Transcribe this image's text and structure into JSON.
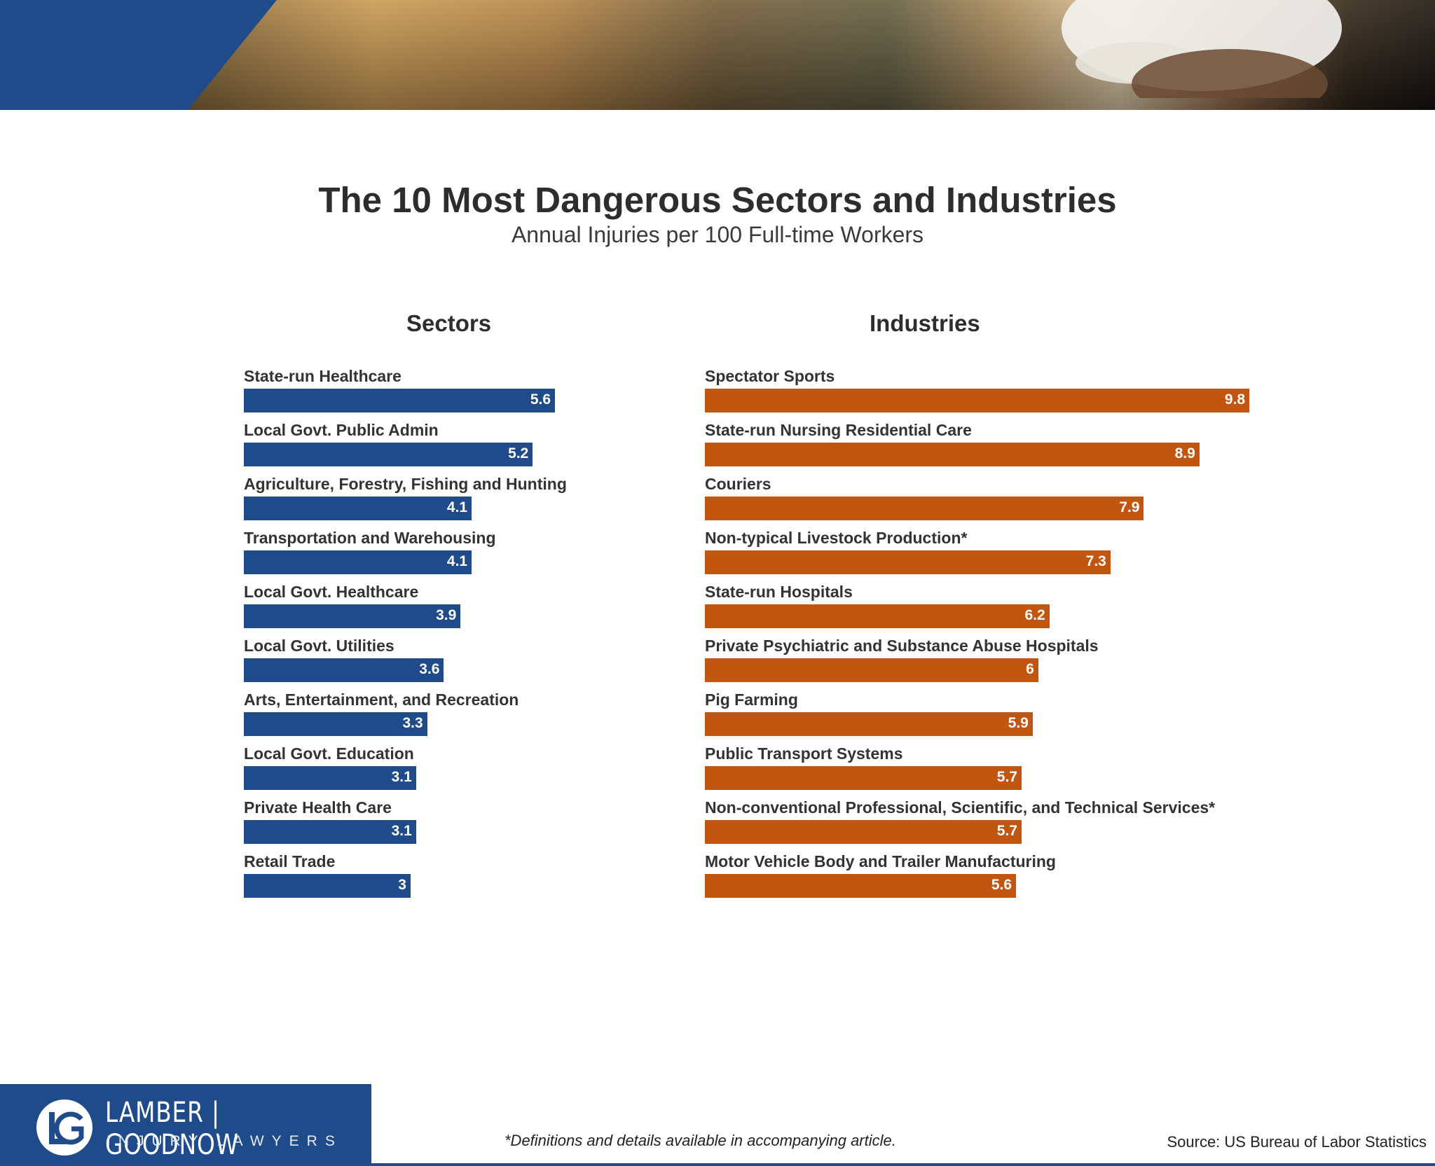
{
  "title": "The 10 Most Dangerous Sectors and Industries",
  "subtitle": "Annual Injuries per 100 Full-time Workers",
  "colors": {
    "sectors": "#1f4b8a",
    "industries": "#c2550f",
    "brand": "#1f4b8a"
  },
  "chart_data": [
    {
      "type": "bar",
      "orientation": "horizontal",
      "title": "Sectors",
      "xlim": [
        0,
        9.8
      ],
      "categories": [
        "State-run Healthcare",
        "Local Govt. Public Admin",
        "Agriculture, Forestry, Fishing and Hunting",
        "Transportation and Warehousing",
        "Local Govt. Healthcare",
        "Local Govt. Utilities",
        "Arts, Entertainment, and Recreation",
        "Local Govt. Education",
        "Private Health Care",
        "Retail Trade"
      ],
      "values": [
        5.6,
        5.2,
        4.1,
        4.1,
        3.9,
        3.6,
        3.3,
        3.1,
        3.1,
        3
      ],
      "value_labels": [
        "5.6",
        "5.2",
        "4.1",
        "4.1",
        "3.9",
        "3.6",
        "3.3",
        "3.1",
        "3.1",
        "3"
      ]
    },
    {
      "type": "bar",
      "orientation": "horizontal",
      "title": "Industries",
      "xlim": [
        0,
        9.8
      ],
      "categories": [
        "Spectator Sports",
        "State-run Nursing Residential Care",
        "Couriers",
        "Non-typical Livestock Production*",
        "State-run Hospitals",
        "Private Psychiatric and Substance Abuse Hospitals",
        "Pig Farming",
        "Public Transport Systems",
        "Non-conventional Professional, Scientific, and Technical Services*",
        "Motor Vehicle Body and Trailer Manufacturing"
      ],
      "values": [
        9.8,
        8.9,
        7.9,
        7.3,
        6.2,
        6,
        5.9,
        5.7,
        5.7,
        5.6
      ],
      "value_labels": [
        "9.8",
        "8.9",
        "7.9",
        "7.3",
        "6.2",
        "6",
        "5.9",
        "5.7",
        "5.7",
        "5.6"
      ]
    }
  ],
  "footer": {
    "brand_name": "LAMBER | GOODNOW",
    "brand_tagline": "INJURY LAWYERS",
    "footnote": "*Definitions and details available in accompanying article.",
    "source": "Source: US Bureau of Labor Statistics"
  }
}
